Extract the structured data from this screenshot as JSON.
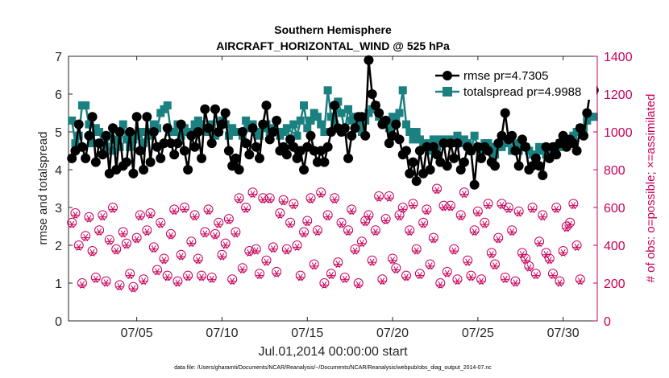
{
  "chart_data": {
    "type": "line",
    "title": "Southern Hemisphere",
    "subtitle": "AIRCRAFT_HORIZONTAL_WIND @ 525 hPa",
    "xlabel": "Jul.01,2014 00:00:00 start",
    "ylabel": "rmse and totalspread",
    "ylabel_right": "# of obs: o=possible; ×=assimilated",
    "footnote": "data file: /Users/gharamti/Documents/NCAR/Reanalysis/~/Documents/NCAR/Reanalysis/webpub/obs_diag_output_2014-07.nc",
    "xlim": [
      1,
      32
    ],
    "ylim": [
      0,
      7
    ],
    "ylim_right": [
      0,
      1400
    ],
    "x_ticks": [
      5,
      10,
      15,
      20,
      25,
      30
    ],
    "x_tick_labels": [
      "07/05",
      "07/10",
      "07/15",
      "07/20",
      "07/25",
      "07/30"
    ],
    "y_ticks": [
      "0",
      "1",
      "2",
      "3",
      "4",
      "5",
      "6",
      "7"
    ],
    "y_ticks_right": [
      "0",
      "200",
      "400",
      "600",
      "800",
      "1000",
      "1200",
      "1400"
    ],
    "legend_position": "top-right",
    "colors": {
      "rmse": "#000000",
      "spread": "#1a8080",
      "obs": "#c8005a"
    },
    "series": [
      {
        "name": "rmse pr=4.7305",
        "marker": "circle",
        "values": [
          4.3,
          4.5,
          5.2,
          4.6,
          4.3,
          4.9,
          5.4,
          4.2,
          4.7,
          4.4,
          4.9,
          3.9,
          5.1,
          4.0,
          5.0,
          4.1,
          4.2,
          5.0,
          3.9,
          5.4,
          4.5,
          4.0,
          5.4,
          4.2,
          5.0,
          4.6,
          4.3,
          4.7,
          5.1,
          4.7,
          4.4,
          4.7,
          5.2,
          4.5,
          4.0,
          4.9,
          4.6,
          5.0,
          4.3,
          5.6,
          5.1,
          4.7,
          5.6,
          5.0,
          5.2,
          5.5,
          4.5,
          4.1,
          4.3,
          4.0,
          5.0,
          4.7,
          4.4,
          5.1,
          4.6,
          4.3,
          5.2,
          5.7,
          4.8,
          5.0,
          5.3,
          4.5,
          4.6,
          4.4,
          4.8,
          4.6,
          4.3,
          4.5,
          4.0,
          4.6,
          4.9,
          4.5,
          4.2,
          4.5,
          4.2,
          4.6,
          5.0,
          5.7,
          5.1,
          5.0,
          5.1,
          4.3,
          4.9,
          5.1,
          5.4,
          5.4,
          4.9,
          6.9,
          6.0,
          5.7,
          5.5,
          5.2,
          5.3,
          4.7,
          4.9,
          5.2,
          4.8,
          4.4,
          4.5,
          3.9,
          4.2,
          3.7,
          4.5,
          3.9,
          4.6,
          4.0,
          4.6,
          4.4,
          4.2,
          4.7,
          4.1,
          4.7,
          4.3,
          4.7,
          4.0,
          4.2,
          4.6,
          4.5,
          3.6,
          4.6,
          4.3,
          4.6,
          4.5,
          4.2,
          4.1,
          4.7,
          4.9,
          5.5,
          4.8,
          4.9,
          4.5,
          4.1,
          4.8,
          4.6,
          4.0,
          4.1,
          4.3,
          4.1,
          3.85,
          4.6,
          4.3,
          4.6,
          4.4,
          4.7,
          4.9,
          4.6,
          4.8,
          4.7,
          4.5,
          5.1,
          4.9,
          5.5,
          6.1,
          6.1
        ]
      },
      {
        "name": "totalspread pr=4.9988",
        "marker": "square",
        "values": [
          5.3,
          4.7,
          4.9,
          5.7,
          5.7,
          5.2,
          4.7,
          5.1,
          5.0,
          4.7,
          4.6,
          4.9,
          4.5,
          4.8,
          4.6,
          5.2,
          4.8,
          4.6,
          4.8,
          4.9,
          5.0,
          4.7,
          5.0,
          4.9,
          5.2,
          5.1,
          5.5,
          5.6,
          5.7,
          5.0,
          5.0,
          5.2,
          4.9,
          5.1,
          5.0,
          5.0,
          5.2,
          5.3,
          5.2,
          5.1,
          5.0,
          5.2,
          4.9,
          5.0,
          5.3,
          5.2,
          4.9,
          5.1,
          5.0,
          5.0,
          4.9,
          5.3,
          5.1,
          5.2,
          5.0,
          4.9,
          5.1,
          5.2,
          5.0,
          5.1,
          5.0,
          4.9,
          5.0,
          5.1,
          4.8,
          5.2,
          4.9,
          5.3,
          5.7,
          5.1,
          5.3,
          5.5,
          5.4,
          5.2,
          5.0,
          6.1,
          5.4,
          5.2,
          5.8,
          5.5,
          5.0,
          5.6,
          5.3,
          5.4,
          5.2,
          5.0,
          5.3,
          5.5,
          5.6,
          5.7,
          5.4,
          5.3,
          5.2,
          5.1,
          5.4,
          5.3,
          5.5,
          6.1,
          5.2,
          5.0,
          4.8,
          5.0,
          4.8,
          4.6,
          4.7,
          4.5,
          4.8,
          4.6,
          4.8,
          4.7,
          4.8,
          4.7,
          4.8,
          4.9,
          4.7,
          4.8,
          4.7,
          4.5,
          4.9,
          4.6,
          4.5,
          4.7,
          4.7,
          4.6,
          4.4,
          4.6,
          4.6,
          4.7,
          4.8,
          4.5,
          4.7,
          4.5,
          4.6,
          4.6,
          4.5,
          4.4,
          4.4,
          4.6,
          4.5,
          4.4,
          4.5,
          4.5,
          4.6,
          4.7,
          4.6,
          4.8,
          4.8,
          4.9,
          5.0,
          5.1,
          5.1,
          5.3,
          5.4,
          5.4
        ]
      },
      {
        "name": "possible",
        "marker": "open-circle",
        "values": [
          520,
          570,
          400,
          200,
          450,
          550,
          370,
          230,
          480,
          560,
          210,
          430,
          600,
          380,
          190,
          470,
          410,
          250,
          180,
          440,
          560,
          220,
          480,
          570,
          390,
          270,
          520,
          330,
          240,
          460,
          590,
          210,
          350,
          600,
          240,
          420,
          560,
          330,
          240,
          470,
          590,
          230,
          460,
          520,
          350,
          410,
          540,
          220,
          470,
          650,
          280,
          600,
          370,
          680,
          380,
          250,
          650,
          320,
          650,
          390,
          260,
          570,
          640,
          380,
          520,
          620,
          400,
          240,
          470,
          530,
          650,
          300,
          480,
          680,
          200,
          560,
          250,
          650,
          310,
          520,
          230,
          480,
          590,
          380,
          200,
          420,
          530,
          560,
          320,
          480,
          660,
          220,
          540,
          660,
          330,
          280,
          560,
          600,
          240,
          480,
          620,
          380,
          250,
          520,
          590,
          300,
          440,
          700,
          200,
          610,
          260,
          610,
          380,
          220,
          560,
          680,
          320,
          240,
          480,
          580,
          220,
          520,
          620,
          360,
          300,
          440,
          620,
          230,
          600,
          480,
          210,
          580,
          360,
          330,
          290,
          600,
          250,
          420,
          560,
          360,
          330,
          250,
          600,
          210,
          370,
          500,
          520,
          620,
          400,
          220
        ]
      },
      {
        "name": "assimilated",
        "marker": "asterisk",
        "values": [
          510,
          560,
          390,
          190,
          440,
          540,
          360,
          220,
          470,
          550,
          200,
          420,
          590,
          370,
          180,
          460,
          400,
          240,
          170,
          430,
          550,
          210,
          470,
          560,
          380,
          260,
          510,
          320,
          230,
          450,
          580,
          200,
          340,
          590,
          230,
          410,
          550,
          320,
          230,
          460,
          580,
          220,
          450,
          510,
          340,
          400,
          530,
          210,
          460,
          640,
          270,
          590,
          360,
          670,
          370,
          240,
          640,
          310,
          640,
          380,
          250,
          560,
          630,
          370,
          510,
          610,
          390,
          230,
          460,
          520,
          640,
          290,
          470,
          670,
          190,
          550,
          240,
          640,
          300,
          510,
          220,
          470,
          580,
          370,
          190,
          410,
          520,
          550,
          310,
          470,
          650,
          210,
          530,
          650,
          320,
          270,
          550,
          590,
          230,
          470,
          610,
          370,
          240,
          510,
          580,
          290,
          430,
          690,
          190,
          600,
          250,
          600,
          370,
          210,
          550,
          670,
          310,
          230,
          470,
          570,
          210,
          510,
          610,
          350,
          290,
          430,
          610,
          220,
          590,
          470,
          200,
          570,
          350,
          320,
          280,
          590,
          240,
          410,
          550,
          350,
          320,
          240,
          590,
          200,
          360,
          490,
          510,
          610,
          390,
          210
        ]
      }
    ]
  }
}
